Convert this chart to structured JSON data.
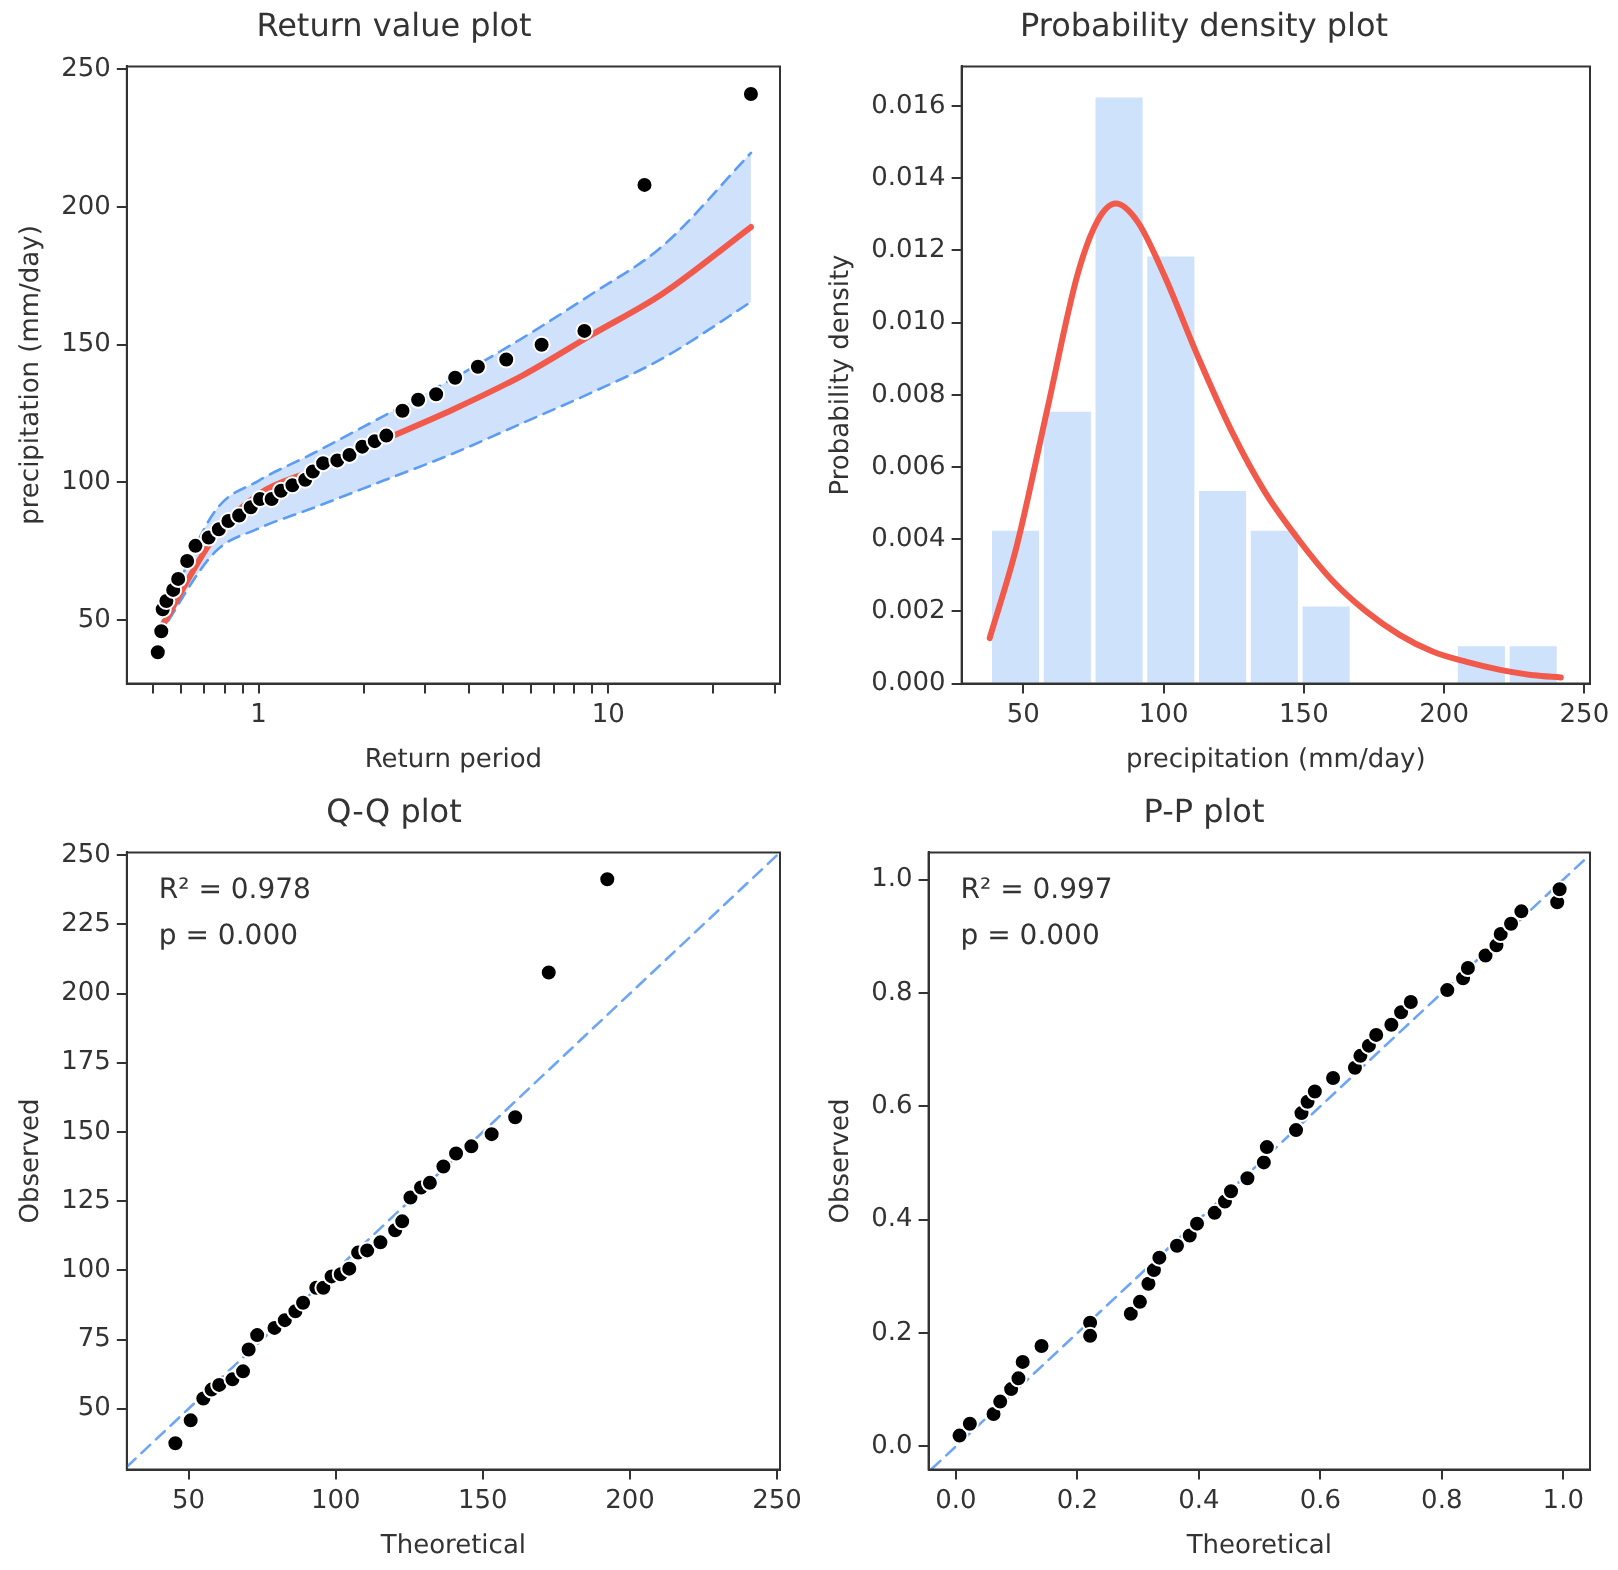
{
  "chart_data": [
    {
      "type": "scatter",
      "title": "Return value plot",
      "xlabel": "Return period",
      "ylabel": "precipitation (mm/day)",
      "log": "x",
      "xlim": [
        0.42,
        31
      ],
      "ylim": [
        27,
        251
      ],
      "xticks": [
        {
          "value": 0.5,
          "label": null
        },
        {
          "value": 0.6,
          "label": null
        },
        {
          "value": 0.7,
          "label": null
        },
        {
          "value": 0.8,
          "label": null
        },
        {
          "value": 0.9,
          "label": null
        },
        1,
        {
          "value": 2,
          "label": null
        },
        {
          "value": 3,
          "label": null
        },
        {
          "value": 4,
          "label": null
        },
        {
          "value": 5,
          "label": null
        },
        {
          "value": 6,
          "label": null
        },
        {
          "value": 7,
          "label": null
        },
        {
          "value": 8,
          "label": null
        },
        {
          "value": 9,
          "label": null
        },
        10,
        {
          "value": 20,
          "label": null
        },
        {
          "value": 30,
          "label": null
        }
      ],
      "yticks": [
        50,
        100,
        150,
        200,
        250
      ],
      "series": [
        {
          "type": "line",
          "color": "#f15a4a",
          "x": [
            0.515,
            0.75,
            1.0,
            1.43,
            2.27,
            3.6,
            5.7,
            9.0,
            14.3,
            25.6
          ],
          "values": [
            45,
            80.5,
            95.7,
            104.3,
            115.4,
            126.5,
            138.9,
            153.7,
            168.5,
            192.7
          ],
          "lower": [
            43.8,
            74.7,
            83.3,
            90.7,
            100.6,
            110.5,
            121.6,
            132.7,
            145,
            165.5
          ],
          "upper": [
            46,
            89.5,
            100.6,
            110.5,
            124,
            137.7,
            152.5,
            168.5,
            185.8,
            219.6
          ]
        },
        {
          "type": "line",
          "color": "#5b9cf5",
          "line_style": "dashed",
          "x": [
            0.515,
            0.75,
            1.0,
            1.43,
            2.27,
            3.6,
            5.7,
            9.0,
            14.3,
            25.6
          ],
          "values": [
            43.8,
            74.7,
            83.3,
            90.7,
            100.6,
            110.5,
            121.6,
            132.7,
            145,
            165.5
          ]
        },
        {
          "type": "line",
          "color": "#5b9cf5",
          "line_style": "dashed",
          "x": [
            0.515,
            0.75,
            1.0,
            1.43,
            2.27,
            3.6,
            5.7,
            9.0,
            14.3,
            25.6
          ],
          "values": [
            46,
            89.5,
            100.6,
            110.5,
            124,
            137.7,
            152.5,
            168.5,
            185.8,
            219.6
          ]
        },
        {
          "color": "#000000",
          "marker": "circle",
          "x": [
            0.515,
            0.527,
            0.532,
            0.545,
            0.57,
            0.589,
            0.625,
            0.66,
            0.72,
            0.77,
            0.82,
            0.88,
            0.95,
            1.01,
            1.09,
            1.16,
            1.25,
            1.36,
            1.43,
            1.53,
            1.68,
            1.82,
            1.98,
            2.15,
            2.32,
            2.58,
            2.86,
            3.22,
            3.65,
            4.24,
            5.11,
            6.45,
            8.55,
            12.7,
            25.6
          ],
          "values": [
            38.4,
            46,
            54,
            57,
            61,
            65,
            71.5,
            77,
            80,
            83,
            86,
            88,
            91,
            94,
            94,
            97,
            99,
            101,
            104,
            107,
            108,
            110,
            113,
            115,
            117,
            126,
            130,
            132,
            138,
            142,
            144.6,
            150,
            155,
            208,
            241
          ]
        }
      ]
    },
    {
      "type": "histogram",
      "title": "Probability density plot",
      "xlabel": "precipitation (mm/day)",
      "ylabel": "Probability density",
      "xlim": [
        28,
        252
      ],
      "ylim": [
        0,
        0.0171
      ],
      "xticks": [
        50,
        100,
        150,
        200,
        250
      ],
      "yticks": [
        {
          "value": 0,
          "label": "0.000"
        },
        {
          "value": 0.002,
          "label": "0.002"
        },
        {
          "value": 0.004,
          "label": "0.004"
        },
        {
          "value": 0.006,
          "label": "0.006"
        },
        {
          "value": 0.008,
          "label": "0.008"
        },
        {
          "value": 0.01,
          "label": "0.010"
        },
        {
          "value": 0.012,
          "label": "0.012"
        },
        {
          "value": 0.014,
          "label": "0.014"
        },
        {
          "value": 0.016,
          "label": "0.016"
        }
      ],
      "series": [
        {
          "color": "#cfe2fb",
          "bins": [
            38,
            56.45,
            74.9,
            93.35,
            111.8,
            130.25,
            148.7,
            167.15,
            185.6,
            204.05,
            222.5,
            241
          ],
          "values": [
            0.0043,
            0.0076,
            0.0163,
            0.0119,
            0.0054,
            0.0043,
            0.0022,
            0,
            0,
            0.0011,
            0.0011
          ]
        },
        {
          "type": "line",
          "color": "#f15a4a",
          "x": [
            38,
            47.6,
            58.4,
            69.2,
            76.3,
            83,
            90.7,
            100.3,
            112.3,
            124.3,
            136.2,
            148.2,
            160.2,
            172.2,
            184.1,
            196.1,
            208,
            220,
            232,
            241.6
          ],
          "values": [
            0.00126,
            0.0038,
            0.00755,
            0.0113,
            0.0128,
            0.0133,
            0.0128,
            0.0113,
            0.00905,
            0.00699,
            0.0053,
            0.00398,
            0.00285,
            0.002,
            0.00135,
            0.00088,
            0.0006,
            0.00038,
            0.00023,
            0.00017
          ]
        }
      ]
    },
    {
      "type": "scatter",
      "title": "Q-Q plot",
      "xlabel": "Theoretical",
      "ylabel": "Observed",
      "xlim": [
        29,
        251
      ],
      "ylim": [
        28,
        251
      ],
      "xticks": [
        50,
        100,
        150,
        200,
        250
      ],
      "yticks": [
        50,
        75,
        100,
        125,
        150,
        175,
        200,
        225,
        250
      ],
      "annotations": [
        "R² = 0.978",
        "p = 0.000"
      ],
      "series": [
        {
          "type": "line",
          "color": "#6ea6f5",
          "line_style": "dashed",
          "x": [
            29,
            251
          ],
          "values": [
            29,
            251
          ]
        },
        {
          "color": "#000000",
          "marker": "circle",
          "x": [
            45.5,
            50.7,
            55,
            57.8,
            60.4,
            64.9,
            68.5,
            70.4,
            73.3,
            79.2,
            82.7,
            86.3,
            88.9,
            93.4,
            95.8,
            98.6,
            101.7,
            104.6,
            107.6,
            110.7,
            115.2,
            120.2,
            122.6,
            125.4,
            129,
            132,
            136.6,
            140.9,
            146.1,
            153,
            161,
            172.4,
            192.3
          ],
          "values": [
            37.5,
            45.8,
            53.7,
            56.9,
            58.6,
            60.6,
            63.5,
            71.4,
            76.6,
            79.2,
            82,
            85.2,
            88.3,
            93.7,
            93.7,
            97.8,
            98.6,
            100.6,
            106.4,
            107.2,
            110.1,
            114.5,
            117.7,
            126.3,
            129.9,
            131.6,
            137.5,
            142.2,
            144.8,
            149.2,
            155.3,
            207.6,
            241.3
          ]
        }
      ]
    },
    {
      "type": "scatter",
      "title": "P-P plot",
      "xlabel": "Theoretical",
      "ylabel": "Observed",
      "xlim": [
        -0.045,
        1.044
      ],
      "ylim": [
        -0.041,
        1.048
      ],
      "xticks": [
        {
          "value": 0,
          "label": "0.0"
        },
        {
          "value": 0.2,
          "label": "0.2"
        },
        {
          "value": 0.4,
          "label": "0.4"
        },
        {
          "value": 0.6,
          "label": "0.6"
        },
        {
          "value": 0.8,
          "label": "0.8"
        },
        {
          "value": 1,
          "label": "1.0"
        }
      ],
      "yticks": [
        {
          "value": 0,
          "label": "0.0"
        },
        {
          "value": 0.2,
          "label": "0.2"
        },
        {
          "value": 0.4,
          "label": "0.4"
        },
        {
          "value": 0.6,
          "label": "0.6"
        },
        {
          "value": 0.8,
          "label": "0.8"
        },
        {
          "value": 1,
          "label": "1.0"
        }
      ],
      "annotations": [
        "R² = 0.997",
        "p = 0.000"
      ],
      "series": [
        {
          "type": "line",
          "color": "#6ea6f5",
          "line_style": "dashed",
          "x": [
            -0.04,
            1.04
          ],
          "values": [
            -0.04,
            1.04
          ]
        },
        {
          "color": "#000000",
          "marker": "circle",
          "x": [
            0.006,
            0.023,
            0.062,
            0.073,
            0.091,
            0.103,
            0.11,
            0.141,
            0.221,
            0.221,
            0.288,
            0.303,
            0.317,
            0.326,
            0.335,
            0.364,
            0.385,
            0.397,
            0.426,
            0.443,
            0.453,
            0.48,
            0.507,
            0.512,
            0.56,
            0.569,
            0.579,
            0.591,
            0.621,
            0.657,
            0.666,
            0.68,
            0.692,
            0.717,
            0.733,
            0.749,
            0.809,
            0.835,
            0.843,
            0.872,
            0.89,
            0.897,
            0.914,
            0.931,
            0.99,
            0.994
          ],
          "values": [
            0.019,
            0.04,
            0.057,
            0.079,
            0.101,
            0.12,
            0.149,
            0.177,
            0.218,
            0.195,
            0.234,
            0.255,
            0.287,
            0.311,
            0.333,
            0.354,
            0.372,
            0.393,
            0.412,
            0.432,
            0.45,
            0.473,
            0.501,
            0.528,
            0.558,
            0.588,
            0.608,
            0.626,
            0.65,
            0.668,
            0.689,
            0.707,
            0.726,
            0.744,
            0.766,
            0.784,
            0.805,
            0.826,
            0.844,
            0.866,
            0.884,
            0.904,
            0.922,
            0.944,
            0.96,
            0.983
          ]
        }
      ]
    }
  ]
}
